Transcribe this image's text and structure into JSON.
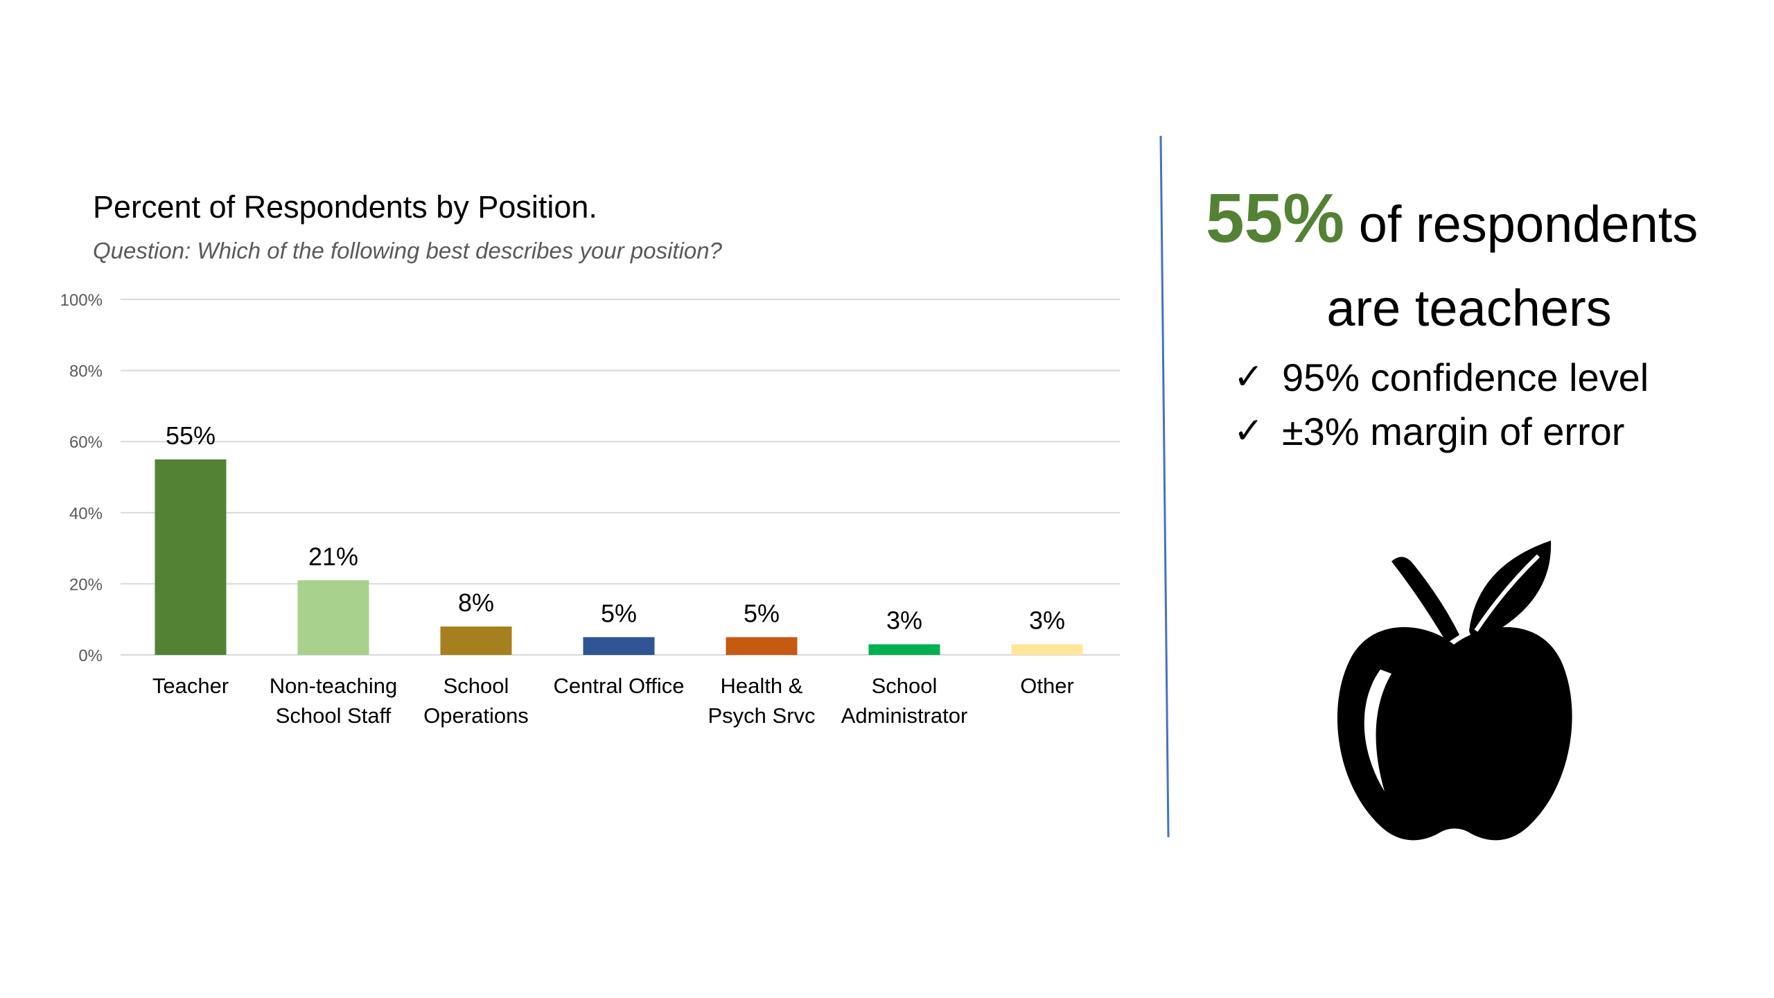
{
  "chart_data": {
    "type": "bar",
    "title": "Percent of Respondents by Position.",
    "subtitle": "Question: Which of the following best describes your position?",
    "categories": [
      [
        "Teacher"
      ],
      [
        "Non-teaching",
        "School Staff"
      ],
      [
        "School",
        "Operations"
      ],
      [
        "Central Office"
      ],
      [
        "Health &",
        "Psych Srvc"
      ],
      [
        "School",
        "Administrator"
      ],
      [
        "Other"
      ]
    ],
    "values": [
      55,
      21,
      8,
      5,
      5,
      3,
      3
    ],
    "data_labels": [
      "55%",
      "21%",
      "8%",
      "5%",
      "5%",
      "3%",
      "3%"
    ],
    "colors": [
      "#548235",
      "#a9d18e",
      "#a67f1e",
      "#2f5597",
      "#c55a11",
      "#00b050",
      "#ffe699"
    ],
    "ylim": [
      0,
      100
    ],
    "yticks": [
      0,
      20,
      40,
      60,
      80,
      100
    ],
    "ytick_labels": [
      "0%",
      "20%",
      "40%",
      "60%",
      "80%",
      "100%"
    ],
    "grid": true,
    "legend": "none"
  },
  "summary": {
    "highlight_value": "55%",
    "headline_rest": " of respondents",
    "headline_line2": "are teachers",
    "highlight_color": "#548235",
    "checklist": [
      {
        "icon": "check-icon",
        "text": "95% confidence level"
      },
      {
        "icon": "check-icon",
        "text": "±3% margin of error"
      }
    ]
  },
  "divider_color": "#4472c4",
  "apple_icon": "apple-icon"
}
